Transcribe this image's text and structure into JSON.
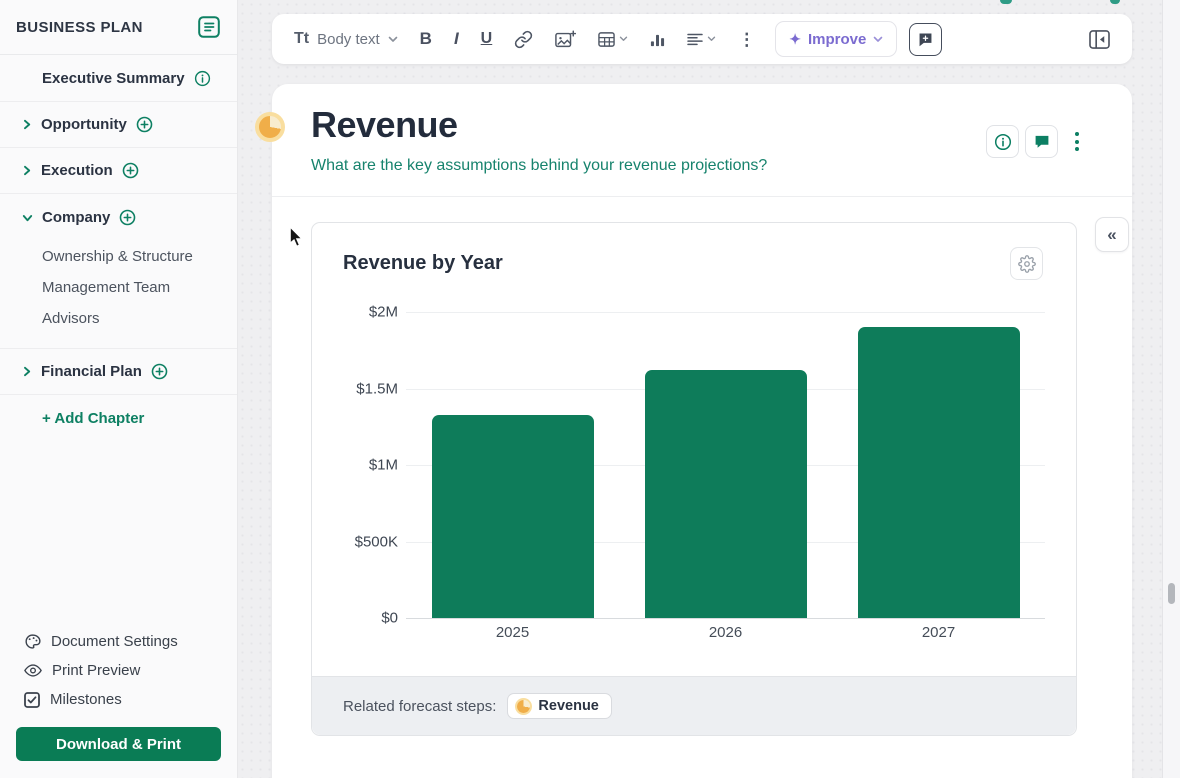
{
  "colors": {
    "accent_teal": "#0E8063",
    "subtitle_teal": "#17836D",
    "button_green": "#0A7C55",
    "improve_purple": "#7B6BD0",
    "bar_fill": "#0E7C5A",
    "pie_orange": "#F0AE49",
    "pie_ring": "#F9DE9F",
    "title_dark": "#232C3C"
  },
  "sidebar": {
    "title": "BUSINESS PLAN",
    "items": [
      {
        "label": "Executive Summary"
      },
      {
        "label": "Opportunity"
      },
      {
        "label": "Execution"
      },
      {
        "label": "Company",
        "children": [
          "Ownership & Structure",
          "Management Team",
          "Advisors"
        ]
      },
      {
        "label": "Financial Plan"
      }
    ],
    "add_chapter": "+ Add Chapter",
    "tools": [
      "Document Settings",
      "Print Preview",
      "Milestones"
    ],
    "download_button": "Download & Print"
  },
  "toolbar": {
    "style_label": "Body text",
    "bold_label": "B",
    "italic_label": "I",
    "underline_label": "U",
    "improve_label": "Improve",
    "icons": {
      "text_style": "Tt",
      "kebab": "⋮",
      "sparkle": "✦"
    }
  },
  "page": {
    "title": "Revenue",
    "prompt": "What are the key assumptions behind your revenue projections?",
    "related_label": "Related forecast steps:",
    "related_chip": "Revenue"
  },
  "main": {
    "collapse_glyph": "«"
  },
  "chart_data": {
    "type": "bar",
    "title": "Revenue by Year",
    "categories": [
      "2025",
      "2026",
      "2027"
    ],
    "values": [
      1330000,
      1620000,
      1900000
    ],
    "ylim": [
      0,
      2000000
    ],
    "ytick_labels": [
      "$0",
      "$500K",
      "$1M",
      "$1.5M",
      "$2M"
    ],
    "xlabel": "",
    "ylabel": "",
    "bar_color": "#0E7C5A",
    "grid": true,
    "legend": false
  }
}
